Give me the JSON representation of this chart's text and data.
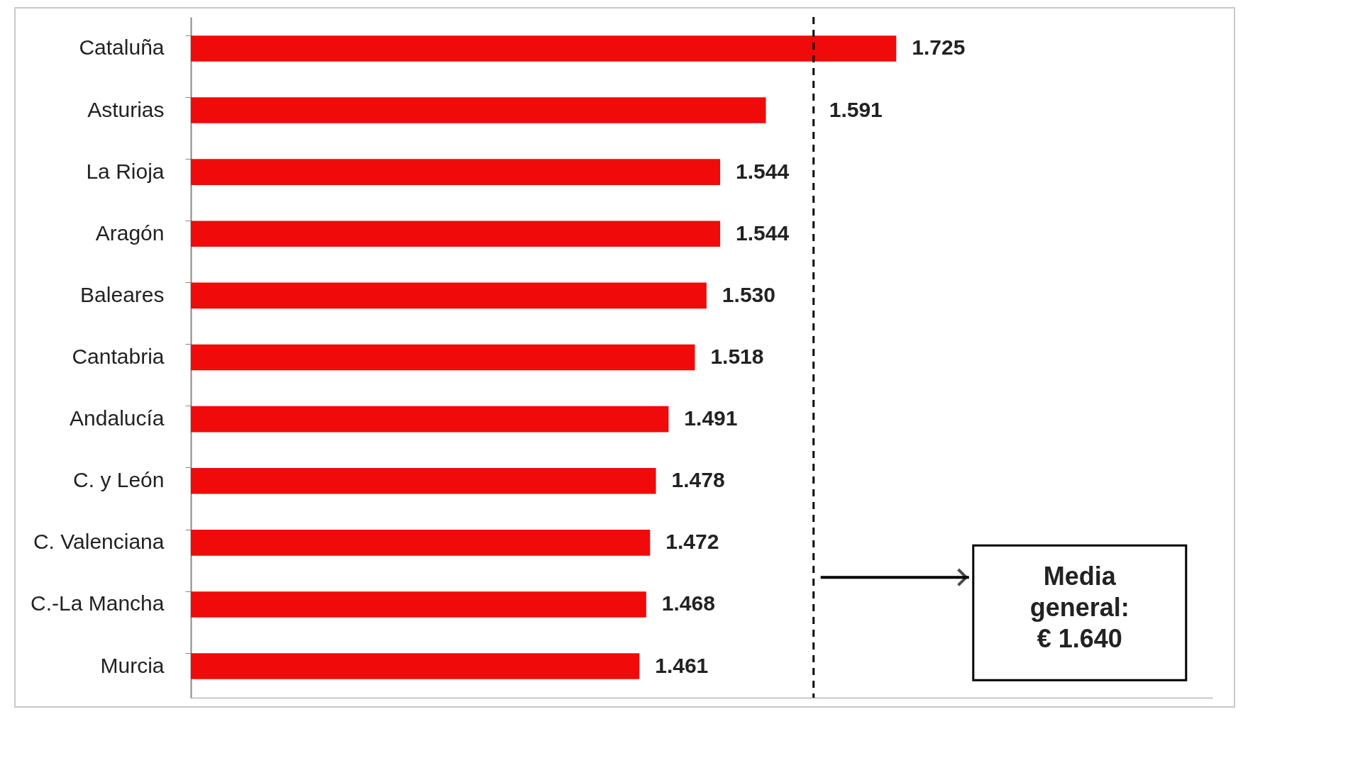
{
  "chart_data": {
    "type": "bar",
    "orientation": "horizontal",
    "categories": [
      "Cataluña",
      "Asturias",
      "La Rioja",
      "Aragón",
      "Baleares",
      "Cantabria",
      "Andalucía",
      "C. y León",
      "C. Valenciana",
      "C.-La Mancha",
      "Murcia"
    ],
    "values": [
      1725,
      1591,
      1544,
      1544,
      1530,
      1518,
      1491,
      1478,
      1472,
      1468,
      1461
    ],
    "value_labels": [
      "1.725",
      "1.591",
      "1.544",
      "1.544",
      "1.530",
      "1.518",
      "1.491",
      "1.478",
      "1.472",
      "1.468",
      "1.461"
    ],
    "color": "#f00a0a",
    "xlim": [
      1000,
      2050
    ],
    "grid": false,
    "tick_labels": "y",
    "ref_lines": [
      {
        "axis": "x",
        "value": 1640,
        "label": "Media\ngeneral:\n€ 1.640",
        "color": "#000000",
        "line_style": "dashed"
      }
    ]
  }
}
